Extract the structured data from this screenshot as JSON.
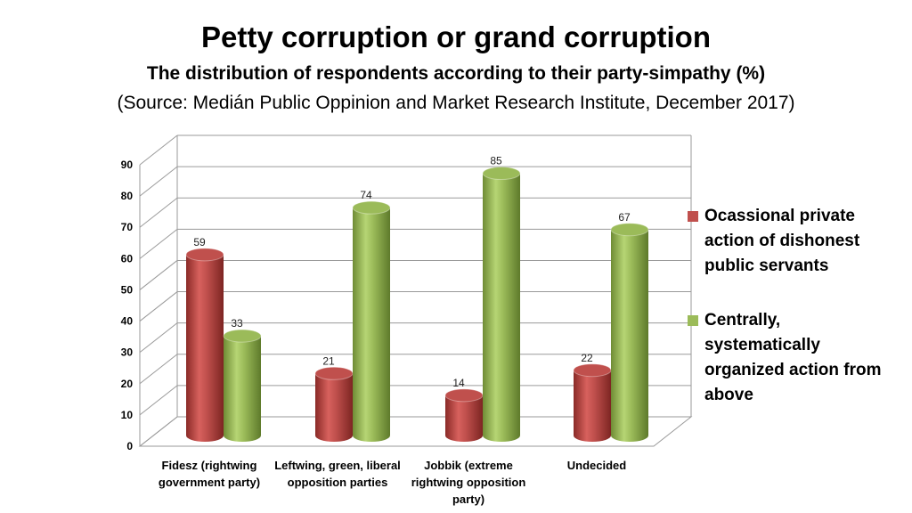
{
  "chart_data": {
    "type": "bar",
    "title": "Petty corruption or grand corruption",
    "subtitle": "The distribution of respondents according to their party-simpathy (%)",
    "source": "(Source: Medián Public Oppinion and Market Research Institute, December 2017)",
    "categories": [
      "Fidesz (rightwing government party)",
      "Leftwing, green, liberal opposition parties",
      "Jobbik (extreme rightwing opposition party)",
      "Undecided"
    ],
    "series": [
      {
        "name": "Ocassional private action of dishonest public servants",
        "values": [
          59,
          21,
          14,
          22
        ],
        "color": "#c0504d"
      },
      {
        "name": "Centrally, systematically organized action from above",
        "values": [
          33,
          74,
          85,
          67
        ],
        "color": "#9bbb59"
      }
    ],
    "yticks": [
      "0",
      "10",
      "20",
      "30",
      "40",
      "50",
      "60",
      "70",
      "80",
      "90"
    ],
    "ylim": [
      0,
      90
    ],
    "grid": true,
    "style": "3d-cylinder",
    "legend_position": "right"
  }
}
